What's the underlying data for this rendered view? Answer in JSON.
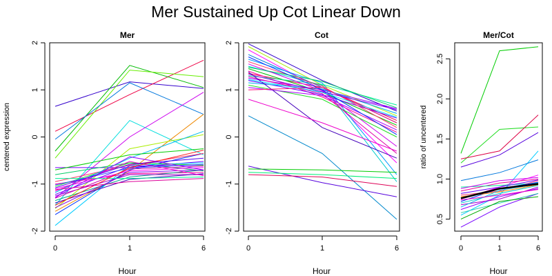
{
  "title": "Mer Sustained Up Cot Linear Down",
  "chart_data": [
    {
      "type": "line",
      "title": "Mer",
      "xlabel": "Hour",
      "ylabel": "centered expression",
      "x_ticks": [
        "0",
        "1",
        "6"
      ],
      "y_ticks": [
        "-2",
        "-1",
        "0",
        "1",
        "2"
      ],
      "ylim": [
        -2,
        2
      ],
      "grid": false,
      "series": [
        {
          "color": "#3300cc",
          "values": [
            0.65,
            1.17,
            1.03
          ]
        },
        {
          "color": "#ee0044",
          "values": [
            0.12,
            0.9,
            1.63
          ]
        },
        {
          "color": "#00bb00",
          "values": [
            -0.3,
            1.52,
            1.05
          ]
        },
        {
          "color": "#66ee00",
          "values": [
            -0.45,
            1.42,
            1.28
          ]
        },
        {
          "color": "#0077dd",
          "values": [
            -0.05,
            1.15,
            0.48
          ]
        },
        {
          "color": "#00dddd",
          "values": [
            -1.45,
            0.35,
            -0.38
          ]
        },
        {
          "color": "#cc00ee",
          "values": [
            -1.3,
            0.0,
            0.95
          ]
        },
        {
          "color": "#7700ff",
          "values": [
            -0.65,
            -0.65,
            -0.52
          ]
        },
        {
          "color": "#ee8800",
          "values": [
            -1.58,
            -0.72,
            0.48
          ]
        },
        {
          "color": "#aaee00",
          "values": [
            -1.52,
            -0.25,
            0.05
          ]
        },
        {
          "color": "#00cc66",
          "values": [
            -0.8,
            -0.55,
            -0.72
          ]
        },
        {
          "color": "#0033ff",
          "values": [
            -1.65,
            -0.7,
            -0.35
          ]
        },
        {
          "color": "#00ccff",
          "values": [
            -1.88,
            -0.6,
            -0.55
          ]
        },
        {
          "color": "#ff0099",
          "values": [
            -1.0,
            -0.78,
            -0.75
          ]
        },
        {
          "color": "#6600ff",
          "values": [
            -1.22,
            -0.62,
            -0.6
          ]
        },
        {
          "color": "#00aa88",
          "values": [
            -1.35,
            -0.85,
            -0.7
          ]
        },
        {
          "color": "#ff00ff",
          "values": [
            -1.1,
            -0.72,
            -0.65
          ]
        },
        {
          "color": "#aa00cc",
          "values": [
            -1.25,
            -0.8,
            -0.8
          ]
        },
        {
          "color": "#22dd22",
          "values": [
            -1.05,
            -0.55,
            -0.6
          ]
        },
        {
          "color": "#4400bb",
          "values": [
            -1.4,
            -0.9,
            -0.78
          ]
        },
        {
          "color": "#ff3366",
          "values": [
            -0.95,
            -0.6,
            -0.35
          ]
        },
        {
          "color": "#00bbee",
          "values": [
            -1.18,
            -0.45,
            0.12
          ]
        },
        {
          "color": "#cc00aa",
          "values": [
            -1.3,
            -0.68,
            -0.62
          ]
        },
        {
          "color": "#8800ee",
          "values": [
            -1.5,
            -0.75,
            -0.7
          ]
        },
        {
          "color": "#00ee99",
          "values": [
            -0.88,
            -0.88,
            -0.85
          ]
        },
        {
          "color": "#ee00cc",
          "values": [
            -1.15,
            -0.52,
            -0.82
          ]
        },
        {
          "color": "#3355ff",
          "values": [
            -1.02,
            -0.66,
            -0.58
          ]
        },
        {
          "color": "#ff2222",
          "values": [
            -1.45,
            -0.65,
            -0.28
          ]
        },
        {
          "color": "#9900ff",
          "values": [
            -1.28,
            -0.42,
            -0.7
          ]
        },
        {
          "color": "#00cc00",
          "values": [
            -0.7,
            -0.38,
            -0.25
          ]
        },
        {
          "color": "#dd0099",
          "values": [
            -1.12,
            -0.95,
            -0.88
          ]
        },
        {
          "color": "#5500ee",
          "values": [
            -1.08,
            -0.58,
            -0.45
          ]
        }
      ]
    },
    {
      "type": "line",
      "title": "Cot",
      "xlabel": "Hour",
      "ylabel": "",
      "x_ticks": [
        "0",
        "1",
        "6"
      ],
      "y_ticks": [
        "-2",
        "-1",
        "0",
        "1",
        "2"
      ],
      "ylim": [
        -2,
        2
      ],
      "grid": false,
      "series": [
        {
          "color": "#aaee00",
          "values": [
            1.92,
            1.1,
            0.45
          ]
        },
        {
          "color": "#0077dd",
          "values": [
            1.75,
            1.05,
            0.3
          ]
        },
        {
          "color": "#ff00ff",
          "values": [
            1.85,
            1.0,
            -0.55
          ]
        },
        {
          "color": "#0099ff",
          "values": [
            1.65,
            1.15,
            -0.8
          ]
        },
        {
          "color": "#00cccc",
          "values": [
            1.5,
            1.1,
            -0.95
          ]
        },
        {
          "color": "#3300cc",
          "values": [
            1.98,
            1.2,
            0.55
          ]
        },
        {
          "color": "#ee0044",
          "values": [
            1.35,
            1.05,
            0.35
          ]
        },
        {
          "color": "#00bb00",
          "values": [
            1.45,
            0.95,
            0.25
          ]
        },
        {
          "color": "#9900ff",
          "values": [
            1.25,
            1.0,
            0.6
          ]
        },
        {
          "color": "#ff0099",
          "values": [
            1.4,
            0.85,
            0.1
          ]
        },
        {
          "color": "#00ee99",
          "values": [
            1.3,
            1.12,
            0.68
          ]
        },
        {
          "color": "#6600ff",
          "values": [
            1.2,
            0.9,
            0.4
          ]
        },
        {
          "color": "#cc00ee",
          "values": [
            1.55,
            0.98,
            -0.2
          ]
        },
        {
          "color": "#22dd22",
          "values": [
            1.1,
            0.8,
            0.0
          ]
        },
        {
          "color": "#ff3366",
          "values": [
            1.6,
            1.08,
            0.2
          ]
        },
        {
          "color": "#00aaee",
          "values": [
            1.15,
            1.02,
            0.5
          ]
        },
        {
          "color": "#dd00aa",
          "values": [
            1.28,
            0.92,
            -0.35
          ]
        },
        {
          "color": "#4400bb",
          "values": [
            1.38,
            0.2,
            -0.45
          ]
        },
        {
          "color": "#aa00ff",
          "values": [
            1.05,
            0.88,
            0.15
          ]
        },
        {
          "color": "#00cc66",
          "values": [
            1.48,
            1.18,
            0.62
          ]
        },
        {
          "color": "#ee00cc",
          "values": [
            0.8,
            0.3,
            -0.3
          ]
        },
        {
          "color": "#0033ff",
          "values": [
            1.7,
            1.0,
            0.05
          ]
        },
        {
          "color": "#00ddff",
          "values": [
            1.22,
            0.95,
            0.42
          ]
        },
        {
          "color": "#ff1177",
          "values": [
            1.0,
            1.05,
            0.3
          ]
        },
        {
          "color": "#8800ee",
          "values": [
            1.33,
            0.96,
            0.58
          ]
        },
        {
          "color": "#0088cc",
          "values": [
            0.45,
            -0.35,
            -1.75
          ]
        },
        {
          "color": "#5500dd",
          "values": [
            -0.62,
            -0.97,
            -1.27
          ]
        },
        {
          "color": "#00cc00",
          "values": [
            -0.68,
            -0.7,
            -0.75
          ]
        },
        {
          "color": "#00ee77",
          "values": [
            -0.75,
            -0.8,
            -0.88
          ]
        },
        {
          "color": "#dd0055",
          "values": [
            -0.8,
            -0.85,
            -1.05
          ]
        }
      ]
    },
    {
      "type": "line",
      "title": "Mer/Cot",
      "xlabel": "Hour",
      "ylabel": "ratio of uncentered",
      "x_ticks": [
        "0",
        "1",
        "6"
      ],
      "y_ticks": [
        "0.5",
        "1.0",
        "1.5",
        "2.0",
        "2.5"
      ],
      "ylim": [
        0.35,
        2.7
      ],
      "grid": false,
      "series": [
        {
          "color": "#00cc00",
          "values": [
            1.32,
            2.6,
            2.65
          ]
        },
        {
          "color": "#22dd22",
          "values": [
            1.2,
            1.62,
            1.65
          ]
        },
        {
          "color": "#dd0044",
          "values": [
            1.25,
            1.35,
            1.8
          ]
        },
        {
          "color": "#5500dd",
          "values": [
            1.15,
            1.3,
            1.58
          ]
        },
        {
          "color": "#00ccff",
          "values": [
            0.55,
            0.8,
            1.35
          ]
        },
        {
          "color": "#0077dd",
          "values": [
            0.98,
            1.08,
            1.24
          ]
        },
        {
          "color": "#7700ff",
          "values": [
            0.4,
            0.65,
            0.82
          ]
        },
        {
          "color": "#ff00ff",
          "values": [
            0.75,
            0.9,
            1.05
          ]
        },
        {
          "color": "#00cccc",
          "values": [
            0.7,
            0.82,
            0.92
          ]
        },
        {
          "color": "#ee0099",
          "values": [
            0.85,
            0.95,
            1.0
          ]
        },
        {
          "color": "#9900ff",
          "values": [
            0.62,
            0.78,
            0.88
          ]
        },
        {
          "color": "#00ee99",
          "values": [
            0.9,
            0.92,
            0.95
          ]
        },
        {
          "color": "#ff3366",
          "values": [
            0.8,
            0.85,
            0.98
          ]
        },
        {
          "color": "#0033ff",
          "values": [
            0.72,
            0.88,
            0.96
          ]
        },
        {
          "color": "#aa00cc",
          "values": [
            0.68,
            0.75,
            0.9
          ]
        },
        {
          "color": "#22ccaa",
          "values": [
            0.58,
            0.7,
            0.82
          ]
        },
        {
          "color": "#cc00ee",
          "values": [
            0.88,
            0.98,
            1.02
          ]
        },
        {
          "color": "#00aa00",
          "values": [
            0.5,
            0.72,
            0.78
          ]
        },
        {
          "color": "#ff8800",
          "values": [
            0.78,
            0.84,
            0.93
          ]
        },
        {
          "color": "#6600ff",
          "values": [
            0.82,
            0.9,
            0.99
          ]
        },
        {
          "color": "#00bbee",
          "values": [
            0.65,
            0.86,
            0.94
          ]
        },
        {
          "color": "#ee00cc",
          "values": [
            0.74,
            0.8,
            0.87
          ]
        },
        {
          "color": "#000000",
          "values": [
            0.76,
            0.88,
            0.94
          ]
        }
      ]
    }
  ]
}
